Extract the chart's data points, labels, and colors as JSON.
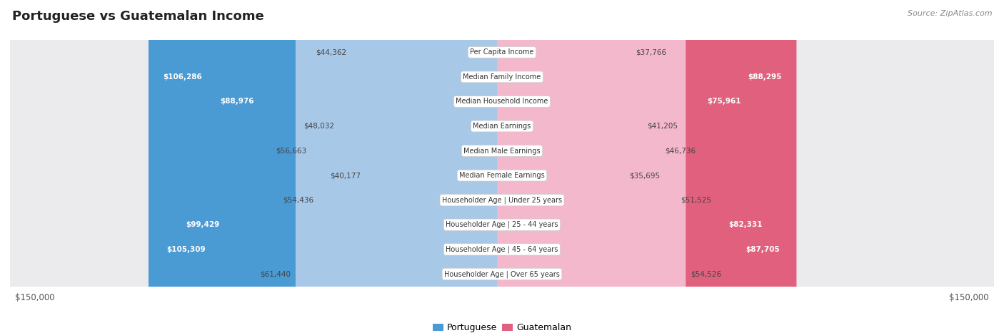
{
  "title": "Portuguese vs Guatemalan Income",
  "source": "Source: ZipAtlas.com",
  "categories": [
    "Per Capita Income",
    "Median Family Income",
    "Median Household Income",
    "Median Earnings",
    "Median Male Earnings",
    "Median Female Earnings",
    "Householder Age | Under 25 years",
    "Householder Age | 25 - 44 years",
    "Householder Age | 45 - 64 years",
    "Householder Age | Over 65 years"
  ],
  "portuguese_values": [
    44362,
    106286,
    88976,
    48032,
    56663,
    40177,
    54436,
    99429,
    105309,
    61440
  ],
  "guatemalan_values": [
    37766,
    88295,
    75961,
    41205,
    46736,
    35695,
    51525,
    82331,
    87705,
    54526
  ],
  "portuguese_labels": [
    "$44,362",
    "$106,286",
    "$88,976",
    "$48,032",
    "$56,663",
    "$40,177",
    "$54,436",
    "$99,429",
    "$105,309",
    "$61,440"
  ],
  "guatemalan_labels": [
    "$37,766",
    "$88,295",
    "$75,961",
    "$41,205",
    "$46,736",
    "$35,695",
    "$51,525",
    "$82,331",
    "$87,705",
    "$54,526"
  ],
  "portuguese_color_light": "#a8c8e8",
  "portuguese_color_solid": "#4a9ad4",
  "guatemalan_color_light": "#f4b8cc",
  "guatemalan_color_solid": "#e0607e",
  "max_value": 150000,
  "bg_color": "#ffffff",
  "row_bg_odd": "#f5f5f7",
  "row_bg_even": "#ebebee",
  "row_border": "#d8d8dc",
  "white_text_threshold_port": 75000,
  "white_text_threshold_guat": 70000,
  "x_axis_label": "$150,000",
  "legend_portuguese": "Portuguese",
  "legend_guatemalan": "Guatemalan"
}
